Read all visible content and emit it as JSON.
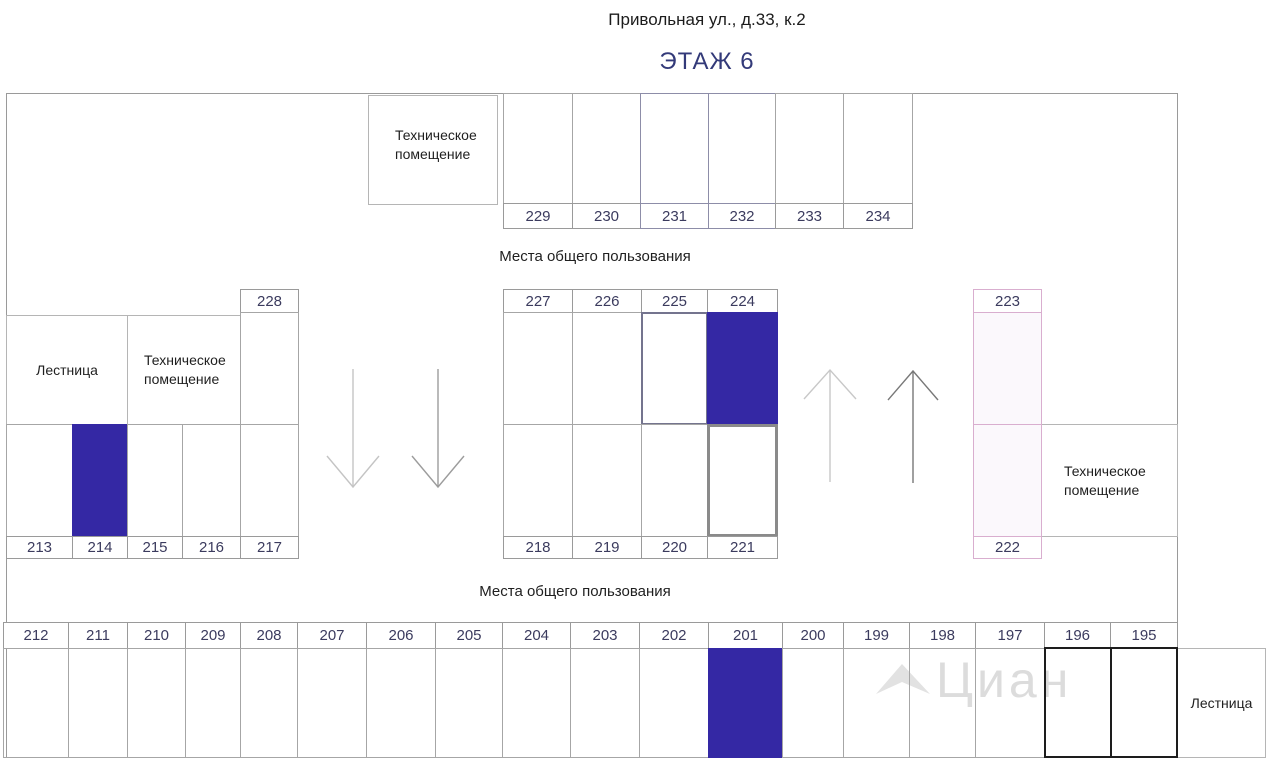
{
  "page_title": "Привольная ул., д.33, к.2",
  "floor_title": "ЭТАЖ 6",
  "labels": {
    "common_area": "Места общего пользования",
    "staircase": "Лестница",
    "technical_room": "Техническое помещение"
  },
  "watermark_text": "Циан",
  "colors": {
    "occupied_fill": "#3428a4",
    "selected_outline": "#8a8a8a",
    "pink_outline": "#d9aecf",
    "grid": "#a6a6a6",
    "floor_title_color": "#333a79"
  },
  "units": {
    "top_row": [
      "229",
      "230",
      "231",
      "232",
      "233",
      "234"
    ],
    "mid_left_upper": [
      "228"
    ],
    "mid_left_lower": [
      "213",
      "214",
      "215",
      "216",
      "217"
    ],
    "mid_center_upper": [
      "227",
      "226",
      "225",
      "224"
    ],
    "mid_center_lower": [
      "218",
      "219",
      "220",
      "221"
    ],
    "mid_right_upper": [
      "223"
    ],
    "mid_right_lower": [
      "222"
    ],
    "bottom_row": [
      "212",
      "211",
      "210",
      "209",
      "208",
      "207",
      "206",
      "205",
      "204",
      "203",
      "202",
      "201",
      "200",
      "199",
      "198",
      "197",
      "196",
      "195"
    ]
  },
  "unit_states": {
    "occupied": [
      "214",
      "224",
      "201"
    ],
    "selected": [
      "221"
    ],
    "pink": [
      "223",
      "222"
    ],
    "outlined": [
      "225"
    ],
    "dark_border": [
      "231",
      "232"
    ],
    "dark_boxed": [
      "196",
      "195"
    ]
  }
}
